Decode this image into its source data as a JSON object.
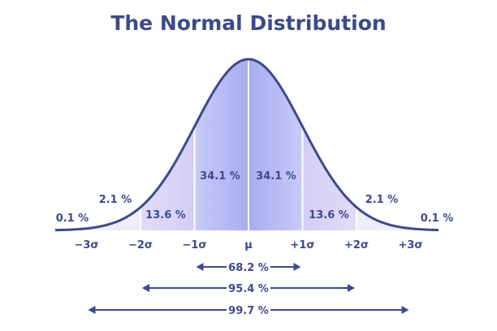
{
  "chart_data": {
    "type": "area",
    "title": "The Normal Distribution",
    "xlabel": "",
    "ylabel": "",
    "grid": false,
    "legend": "none",
    "x_range": [
      -3.6,
      3.6
    ],
    "ticks": [
      {
        "value": -3,
        "label": "−3σ"
      },
      {
        "value": -2,
        "label": "−2σ"
      },
      {
        "value": -1,
        "label": "−1σ"
      },
      {
        "value": 0,
        "label": "μ"
      },
      {
        "value": 1,
        "label": "+1σ"
      },
      {
        "value": 2,
        "label": "+2σ"
      },
      {
        "value": 3,
        "label": "+3σ"
      }
    ],
    "regions": [
      {
        "from": -4,
        "to": -3,
        "value": 0.1,
        "label": "0.1 %"
      },
      {
        "from": -3,
        "to": -2,
        "value": 2.1,
        "label": "2.1 %"
      },
      {
        "from": -2,
        "to": -1,
        "value": 13.6,
        "label": "13.6 %"
      },
      {
        "from": -1,
        "to": 0,
        "value": 34.1,
        "label": "34.1 %"
      },
      {
        "from": 0,
        "to": 1,
        "value": 34.1,
        "label": "34.1 %"
      },
      {
        "from": 1,
        "to": 2,
        "value": 13.6,
        "label": "13.6 %"
      },
      {
        "from": 2,
        "to": 3,
        "value": 2.1,
        "label": "2.1 %"
      },
      {
        "from": 3,
        "to": 4,
        "value": 0.1,
        "label": "0.1 %"
      }
    ],
    "ranges": [
      {
        "from": -1,
        "to": 1,
        "value": 68.2,
        "label": "68.2 %"
      },
      {
        "from": -2,
        "to": 2,
        "value": 95.4,
        "label": "95.4 %"
      },
      {
        "from": -3,
        "to": 3,
        "value": 99.7,
        "label": "99.7 %"
      }
    ]
  },
  "colors": {
    "text": "#3d4a8a",
    "curve": "#3d4a8a",
    "band_inner": "#a9aef3",
    "band_inner_light": "#c6c9f8",
    "band_middle": "#cfc9f2",
    "band_outer": "#efecfb",
    "divider": "#ffffff",
    "arrow": "#3d4a8a"
  }
}
